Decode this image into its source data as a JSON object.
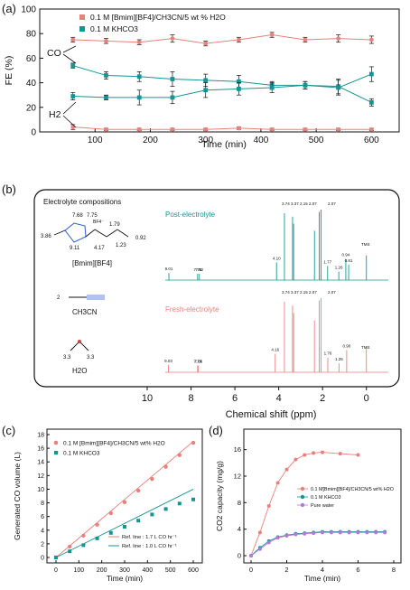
{
  "colors": {
    "red": "#e8817c",
    "teal": "#169494",
    "violet": "#b27bd8",
    "axis": "#111111"
  },
  "panel_a": {
    "label": "(a)",
    "legend": [
      "0.1 M [Bmim][BF4]/CH3CN/5 wt % H2O",
      "0.1 M KHCO3"
    ],
    "annotations": {
      "co": "CO",
      "h2": "H2"
    }
  },
  "panel_b": {
    "label": "(b)",
    "box_title": "Electrolyte compositions",
    "post_label": "Post-electrolyte",
    "fresh_label": "Fresh-electrolyte",
    "tms": "TMS",
    "bmim_name": "[Bmim][BF4]",
    "acn_name": "CH3CN",
    "water_name": "H2O",
    "struct_labels": {
      "bf4": "BF4⁻",
      "a": "7.68",
      "b": "7.75",
      "c": "3.86",
      "d": "9.11",
      "e": "4.17",
      "f": "1.79",
      "g": "1.23",
      "h": "0.92",
      "i": "2",
      "j": "3.3",
      "k": "3.3"
    },
    "post_peaks": [
      "9.01",
      "7.70",
      "7.62",
      "4.10",
      "3.74",
      "3.37",
      "3.32",
      "2.37",
      "2.15",
      "2.07",
      "1.77",
      "1.26",
      "0.94",
      "0.81"
    ],
    "fresh_peaks": [
      "9.03",
      "7.70",
      "7.66",
      "4.16",
      "3.74",
      "3.37",
      "3.32",
      "2.37",
      "2.15",
      "2.07",
      "1.76",
      "1.25",
      "0.90"
    ],
    "top_labels": {
      "post": "3.74 3.37 2.15 2.07",
      "post2": "2.07",
      "fresh": "3.74 3.37 2.15 2.07",
      "fresh2": "2.07"
    }
  },
  "panel_c": {
    "label": "(c)",
    "legend": [
      "0.1 M [Bmim][BF4]/CH3CN/5 wt% H2O",
      "0.1 M KHCO3"
    ],
    "ref_legend": [
      "Ref. line : 1.7 L CO hr⁻¹",
      "Ref. line : 1.0 L CO hr⁻¹"
    ]
  },
  "panel_d": {
    "label": "(d)",
    "legend": [
      "0.1 M[Bmim][BF4]/CH3CN/5 wt% H2O",
      "0.1 M KHCO3",
      "Pure water"
    ]
  },
  "chart_data": [
    {
      "type": "scatter",
      "title": "",
      "xlabel": "Time (min)",
      "ylabel": "FE (%)",
      "xlim": [
        0,
        650
      ],
      "ylim": [
        0,
        100
      ],
      "xticks": [
        100,
        200,
        300,
        400,
        500,
        600
      ],
      "yticks": [
        0,
        20,
        40,
        60,
        80,
        100
      ],
      "x": [
        60,
        120,
        180,
        240,
        300,
        360,
        420,
        480,
        540,
        600
      ],
      "series": [
        {
          "name": "0.1 M [Bmim][BF4]/CH3CN/5 wt % H2O",
          "role": "CO",
          "color": "#e8817c",
          "values": [
            75,
            74,
            73,
            76,
            72,
            75,
            79,
            75,
            76,
            75
          ]
        },
        {
          "name": "0.1 M KHCO3",
          "role": "CO",
          "color": "#169494",
          "values": [
            54,
            46,
            45,
            43,
            42,
            41,
            38,
            38,
            37,
            24
          ]
        },
        {
          "name": "0.1 M KHCO3",
          "role": "H2",
          "color": "#169494",
          "values": [
            29,
            28,
            28,
            28,
            34,
            35,
            36,
            38,
            36,
            47
          ]
        },
        {
          "name": "0.1 M [Bmim][BF4]/CH3CN/5 wt % H2O",
          "role": "H2",
          "color": "#e8817c",
          "values": [
            4,
            2,
            2,
            2,
            2,
            3,
            2,
            2,
            2,
            2
          ]
        }
      ]
    },
    {
      "type": "line",
      "title": "",
      "xlabel": "Chemical shift (ppm)",
      "ylabel": "",
      "xlim": [
        10,
        -1
      ],
      "xticks": [
        10,
        8,
        6,
        4,
        2,
        0
      ],
      "series": [
        {
          "name": "Post-electrolyte",
          "color": "#169494",
          "peaks_ppm": [
            9.01,
            7.7,
            7.62,
            4.1,
            3.74,
            3.37,
            3.32,
            2.37,
            2.15,
            2.07,
            1.77,
            1.26,
            0.94,
            0.81,
            0.0
          ]
        },
        {
          "name": "Fresh-electrolyte",
          "color": "#e8817c",
          "peaks_ppm": [
            9.03,
            7.7,
            7.66,
            4.16,
            3.74,
            3.37,
            3.32,
            2.37,
            2.15,
            2.07,
            1.76,
            1.25,
            0.9,
            0.0
          ]
        }
      ]
    },
    {
      "type": "scatter",
      "title": "",
      "xlabel": "Time (min)",
      "ylabel": "Generated CO volume (L)",
      "xlim": [
        0,
        600
      ],
      "ylim": [
        0,
        18
      ],
      "xticks": [
        0,
        100,
        200,
        300,
        400,
        500,
        600
      ],
      "yticks": [
        0,
        2,
        4,
        6,
        8,
        10,
        12,
        14,
        16,
        18
      ],
      "x": [
        0,
        60,
        120,
        180,
        240,
        300,
        360,
        420,
        480,
        540,
        600
      ],
      "series": [
        {
          "name": "0.1 M [Bmim][BF4]/CH3CN/5 wt% H2O",
          "color": "#e8817c",
          "values": [
            0,
            1.6,
            3.2,
            4.8,
            6.5,
            8.1,
            9.8,
            11.5,
            13.3,
            15.0,
            16.8
          ]
        },
        {
          "name": "0.1 M KHCO3",
          "color": "#169494",
          "values": [
            0,
            0.9,
            1.8,
            2.8,
            3.6,
            4.5,
            5.4,
            6.3,
            7.1,
            7.9,
            8.5
          ]
        }
      ],
      "ref_lines": [
        {
          "name": "Ref. line : 1.7 L CO hr⁻¹",
          "color": "#e8817c",
          "x": [
            0,
            600
          ],
          "y": [
            0,
            17
          ]
        },
        {
          "name": "Ref. line : 1.0 L CO hr⁻¹",
          "color": "#169494",
          "x": [
            0,
            600
          ],
          "y": [
            0,
            10
          ]
        }
      ]
    },
    {
      "type": "line",
      "title": "",
      "xlabel": "Time (min)",
      "ylabel": "CO2 capacity (mg/g)",
      "xlim": [
        0,
        8
      ],
      "ylim": [
        0,
        18
      ],
      "xticks": [
        0,
        2,
        4,
        6,
        8
      ],
      "yticks": [
        0,
        4,
        8,
        12,
        16
      ],
      "series": [
        {
          "name": "0.1 M[Bmim][BF4]/CH3CN/5 wt% H2O",
          "color": "#e8817c",
          "x": [
            0,
            0.5,
            1,
            1.5,
            2,
            2.5,
            3,
            3.5,
            4,
            5,
            6
          ],
          "values": [
            0,
            3.5,
            7.5,
            11,
            13,
            14.5,
            15.2,
            15.5,
            15.6,
            15.4,
            15.2
          ]
        },
        {
          "name": "0.1 M KHCO3",
          "color": "#169494",
          "x": [
            0,
            0.5,
            1,
            1.5,
            2,
            2.5,
            3,
            3.5,
            4,
            4.5,
            5,
            5.5,
            6,
            6.5,
            7,
            7.5
          ],
          "values": [
            0,
            1.2,
            2.2,
            2.8,
            3.1,
            3.3,
            3.4,
            3.5,
            3.6,
            3.6,
            3.6,
            3.6,
            3.6,
            3.6,
            3.6,
            3.6
          ]
        },
        {
          "name": "Pure water",
          "color": "#b27bd8",
          "x": [
            0,
            0.5,
            1,
            1.5,
            2,
            2.5,
            3,
            3.5,
            4,
            4.5,
            5,
            5.5,
            6,
            6.5,
            7,
            7.5
          ],
          "values": [
            0,
            1.0,
            2.0,
            2.7,
            3.0,
            3.2,
            3.3,
            3.4,
            3.5,
            3.5,
            3.5,
            3.5,
            3.5,
            3.5,
            3.5,
            3.5
          ]
        }
      ]
    }
  ]
}
